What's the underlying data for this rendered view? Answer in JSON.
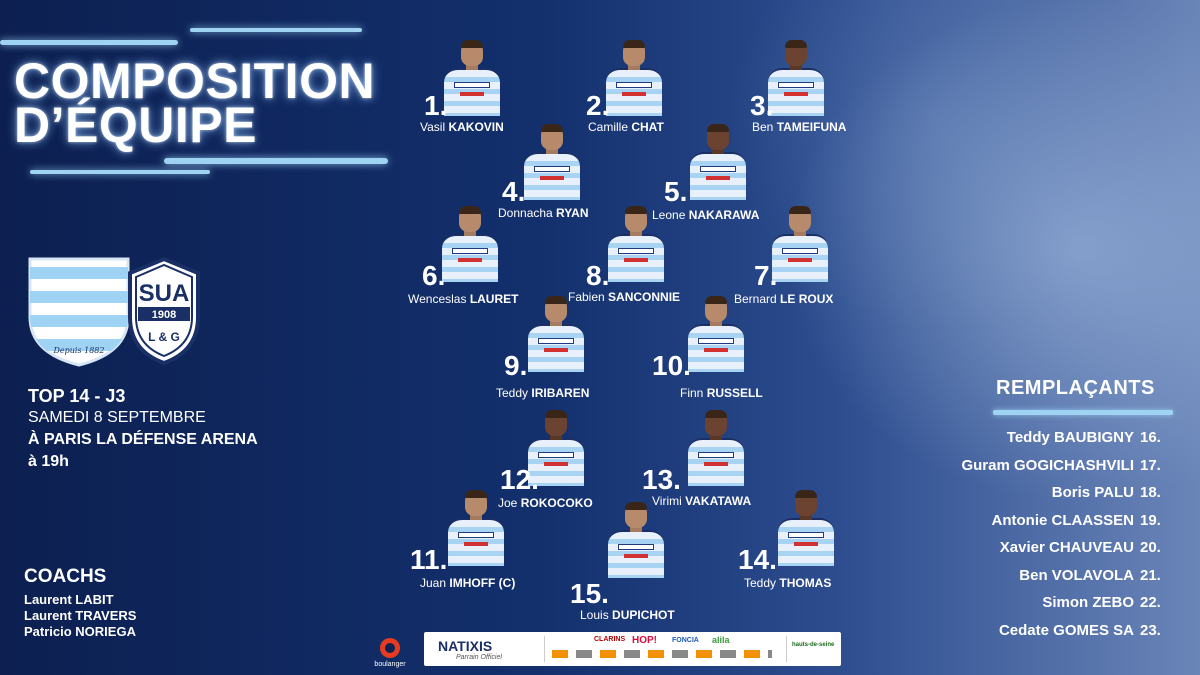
{
  "title": {
    "line1": "COMPOSITION",
    "line2": "D’ÉQUIPE"
  },
  "crests": {
    "home_text": "Depuis 1882",
    "away_top": "SUA",
    "away_year": "1908",
    "away_bottom": "L & G"
  },
  "match": {
    "competition": "TOP 14 - J3",
    "date": "SAMEDI 8 SEPTEMBRE",
    "venue": "À PARIS LA DÉFENSE ARENA",
    "time": "à 19h"
  },
  "coachs": {
    "title": "COACHS",
    "names": [
      "Laurent LABIT",
      "Laurent TRAVERS",
      "Patricio NORIEGA"
    ]
  },
  "players": [
    {
      "num": "1.",
      "first": "Vasil",
      "last": "KAKOVIN"
    },
    {
      "num": "2.",
      "first": "Camille",
      "last": "CHAT"
    },
    {
      "num": "3.",
      "first": "Ben",
      "last": "TAMEIFUNA"
    },
    {
      "num": "4.",
      "first": "Donnacha",
      "last": "RYAN"
    },
    {
      "num": "5.",
      "first": "Leone",
      "last": "NAKARAWA"
    },
    {
      "num": "6.",
      "first": "Wenceslas",
      "last": "LAURET"
    },
    {
      "num": "8.",
      "first": "Fabien",
      "last": "SANCONNIE"
    },
    {
      "num": "7.",
      "first": "Bernard",
      "last": "LE ROUX"
    },
    {
      "num": "9.",
      "first": "Teddy",
      "last": "IRIBAREN"
    },
    {
      "num": "10.",
      "first": "Finn",
      "last": "RUSSELL"
    },
    {
      "num": "12.",
      "first": "Joe",
      "last": "ROKOCOKO"
    },
    {
      "num": "13.",
      "first": "Virimi",
      "last": "VAKATAWA"
    },
    {
      "num": "11.",
      "first": "Juan",
      "last": "IMHOFF (C)"
    },
    {
      "num": "15.",
      "first": "Louis",
      "last": "DUPICHOT"
    },
    {
      "num": "14.",
      "first": "Teddy",
      "last": "THOMAS"
    }
  ],
  "remplacants": {
    "title": "REMPLAÇANTS",
    "list": [
      {
        "name": "Teddy BAUBIGNY",
        "num": "16."
      },
      {
        "name": "Guram GOGICHASHVILI",
        "num": "17."
      },
      {
        "name": "Boris PALU",
        "num": "18."
      },
      {
        "name": "Antonie CLAASSEN",
        "num": "19."
      },
      {
        "name": "Xavier CHAUVEAU",
        "num": "20."
      },
      {
        "name": "Ben VOLAVOLA",
        "num": "21."
      },
      {
        "name": "Simon ZEBO",
        "num": "22."
      },
      {
        "name": "Cedate GOMES SA",
        "num": "23."
      }
    ]
  },
  "jersey_sponsor": "NATIXIS",
  "sponsors": {
    "boulanger": "boulanger",
    "natixis": "NATIXIS",
    "natixis_sub": "Parrain Officiel",
    "others": [
      "CLARINS",
      "HOP!",
      "FONCIA",
      "alila",
      "hauts-de-seine"
    ]
  },
  "colors": {
    "background": "#0d2152",
    "accent": "#9fd3f3",
    "jersey_light": "#e8f1fb",
    "jersey_stripe": "#a8d3f2"
  }
}
